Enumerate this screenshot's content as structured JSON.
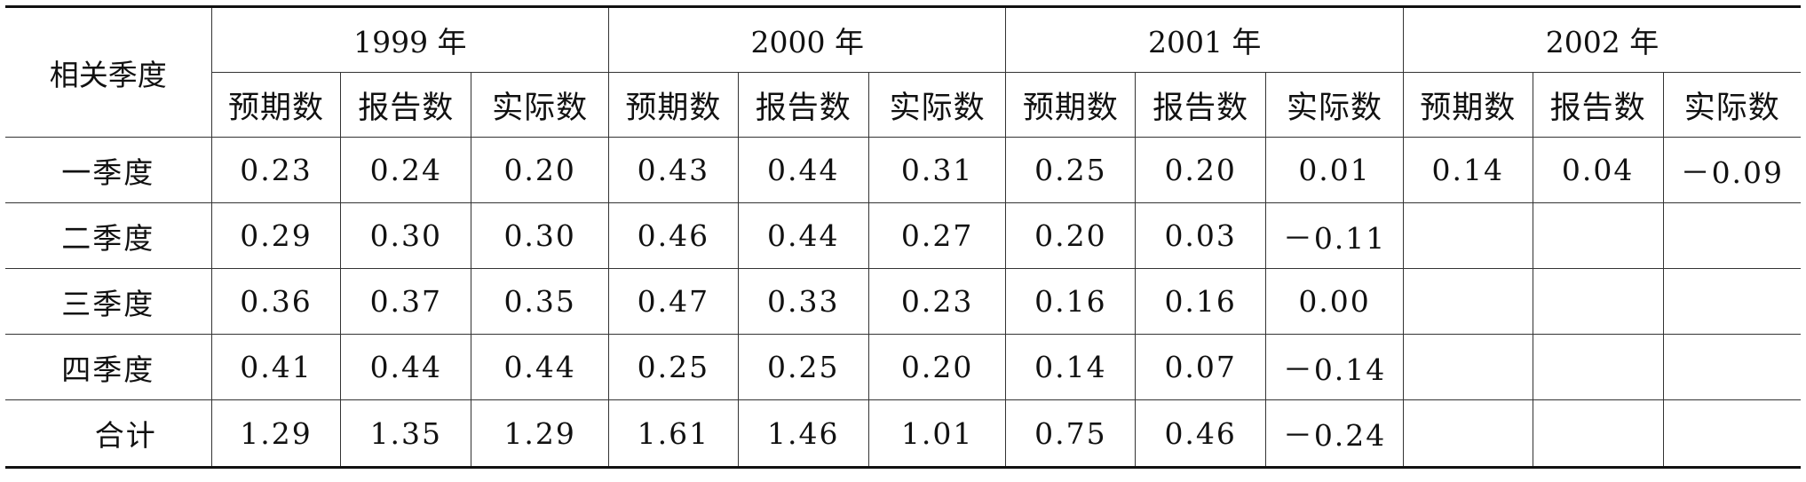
{
  "table": {
    "corner_label": "相关季度",
    "years": [
      {
        "label": "1999 年"
      },
      {
        "label": "2000 年"
      },
      {
        "label": "2001 年"
      },
      {
        "label": "2002 年"
      }
    ],
    "sub_headers": [
      "预期数",
      "报告数",
      "实际数"
    ],
    "rows": [
      {
        "label": "一季度",
        "values": [
          [
            "0.23",
            "0.24",
            "0.20"
          ],
          [
            "0.43",
            "0.44",
            "0.31"
          ],
          [
            "0.25",
            "0.20",
            "0.01"
          ],
          [
            "0.14",
            "0.04",
            "－0.09"
          ]
        ]
      },
      {
        "label": "二季度",
        "values": [
          [
            "0.29",
            "0.30",
            "0.30"
          ],
          [
            "0.46",
            "0.44",
            "0.27"
          ],
          [
            "0.20",
            "0.03",
            "－0.11"
          ],
          [
            "",
            "",
            ""
          ]
        ]
      },
      {
        "label": "三季度",
        "values": [
          [
            "0.36",
            "0.37",
            "0.35"
          ],
          [
            "0.47",
            "0.33",
            "0.23"
          ],
          [
            "0.16",
            "0.16",
            "0.00"
          ],
          [
            "",
            "",
            ""
          ]
        ]
      },
      {
        "label": "四季度",
        "values": [
          [
            "0.41",
            "0.44",
            "0.44"
          ],
          [
            "0.25",
            "0.25",
            "0.20"
          ],
          [
            "0.14",
            "0.07",
            "－0.14"
          ],
          [
            "",
            "",
            ""
          ]
        ]
      },
      {
        "label": "合计",
        "values": [
          [
            "1.29",
            "1.35",
            "1.29"
          ],
          [
            "1.61",
            "1.46",
            "1.01"
          ],
          [
            "0.75",
            "0.46",
            "－0.24"
          ],
          [
            "",
            "",
            ""
          ]
        ]
      }
    ]
  }
}
